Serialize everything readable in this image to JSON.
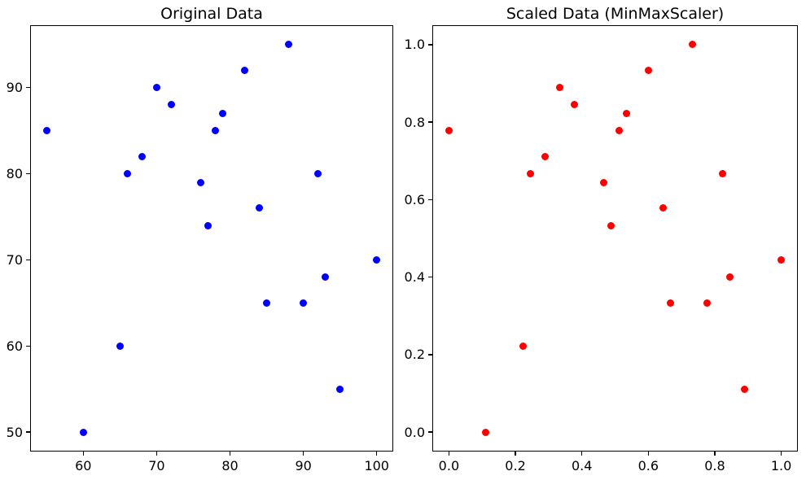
{
  "figure_background": "#ffffff",
  "chart_data": [
    {
      "type": "scatter",
      "title": "Original Data",
      "xlabel": "",
      "ylabel": "",
      "marker_color": "#0000ff",
      "marker_shape": "circle",
      "grid": false,
      "legend": "none",
      "xlim": [
        52.75,
        102.25
      ],
      "ylim": [
        47.75,
        97.25
      ],
      "xticks": [
        60,
        70,
        80,
        90,
        100
      ],
      "xtick_labels": [
        "60",
        "70",
        "80",
        "90",
        "100"
      ],
      "yticks": [
        50,
        60,
        70,
        80,
        90
      ],
      "ytick_labels": [
        "50",
        "60",
        "70",
        "80",
        "90"
      ],
      "points": [
        [
          55,
          85
        ],
        [
          60,
          50
        ],
        [
          65,
          60
        ],
        [
          66,
          80
        ],
        [
          68,
          82
        ],
        [
          70,
          90
        ],
        [
          72,
          88
        ],
        [
          76,
          79
        ],
        [
          77,
          74
        ],
        [
          78,
          85
        ],
        [
          79,
          87
        ],
        [
          82,
          92
        ],
        [
          84,
          76
        ],
        [
          85,
          65
        ],
        [
          88,
          95
        ],
        [
          90,
          65
        ],
        [
          92,
          80
        ],
        [
          93,
          68
        ],
        [
          95,
          55
        ],
        [
          100,
          70
        ]
      ]
    },
    {
      "type": "scatter",
      "title": "Scaled Data (MinMaxScaler)",
      "xlabel": "",
      "ylabel": "",
      "marker_color": "#ff0000",
      "marker_shape": "circle",
      "grid": false,
      "legend": "none",
      "xlim": [
        -0.05,
        1.05
      ],
      "ylim": [
        -0.05,
        1.05
      ],
      "xticks": [
        0.0,
        0.2,
        0.4,
        0.6,
        0.8,
        1.0
      ],
      "xtick_labels": [
        "0.0",
        "0.2",
        "0.4",
        "0.6",
        "0.8",
        "1.0"
      ],
      "yticks": [
        0.0,
        0.2,
        0.4,
        0.6,
        0.8,
        1.0
      ],
      "ytick_labels": [
        "0.0",
        "0.2",
        "0.4",
        "0.6",
        "0.8",
        "1.0"
      ],
      "points": [
        [
          0.0,
          0.7778
        ],
        [
          0.1111,
          0.0
        ],
        [
          0.2222,
          0.2222
        ],
        [
          0.2444,
          0.6667
        ],
        [
          0.2889,
          0.7111
        ],
        [
          0.3333,
          0.8889
        ],
        [
          0.3778,
          0.8444
        ],
        [
          0.4667,
          0.6444
        ],
        [
          0.4889,
          0.5333
        ],
        [
          0.5111,
          0.7778
        ],
        [
          0.5333,
          0.8222
        ],
        [
          0.6,
          0.9333
        ],
        [
          0.6444,
          0.5778
        ],
        [
          0.6667,
          0.3333
        ],
        [
          0.7333,
          1.0
        ],
        [
          0.7778,
          0.3333
        ],
        [
          0.8222,
          0.6667
        ],
        [
          0.8444,
          0.4
        ],
        [
          0.8889,
          0.1111
        ],
        [
          1.0,
          0.4444
        ]
      ]
    }
  ]
}
